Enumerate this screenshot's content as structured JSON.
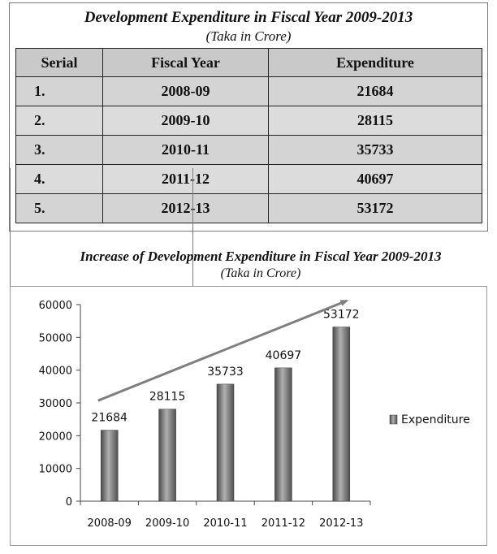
{
  "table": {
    "title": "Development Expenditure in Fiscal Year 2009-2013",
    "subtitle": "(Taka in Crore)",
    "headers": [
      "Serial",
      "Fiscal Year",
      "Expenditure"
    ],
    "rows": [
      [
        "1.",
        "2008-09",
        "21684"
      ],
      [
        "2.",
        "2009-10",
        "28115"
      ],
      [
        "3.",
        "2010-11",
        "35733"
      ],
      [
        "4.",
        "2011-12",
        "40697"
      ],
      [
        "5.",
        "2012-13",
        "53172"
      ]
    ]
  },
  "chart_data": {
    "type": "bar",
    "title": "Increase of Development Expenditure in Fiscal Year 2009-2013",
    "subtitle": "(Taka in Crore)",
    "categories": [
      "2008-09",
      "2009-10",
      "2010-11",
      "2011-12",
      "2012-13"
    ],
    "series": [
      {
        "name": "Expenditure",
        "values": [
          21684,
          28115,
          35733,
          40697,
          53172
        ]
      }
    ],
    "data_labels": [
      "21684",
      "28115",
      "35733",
      "40697",
      "53172"
    ],
    "y_ticks": [
      "0",
      "10000",
      "20000",
      "30000",
      "40000",
      "50000",
      "60000"
    ],
    "ylim": [
      0,
      60000
    ],
    "xlabel": "",
    "ylabel": "",
    "legend": "right",
    "grid": false,
    "trend_arrow": {
      "from_value": 30700,
      "to_value": 61200
    },
    "colors": {
      "bar_dark": "#5c5c5c",
      "bar_light": "#a8a8a8",
      "arrow": "#7f7f7f"
    }
  }
}
